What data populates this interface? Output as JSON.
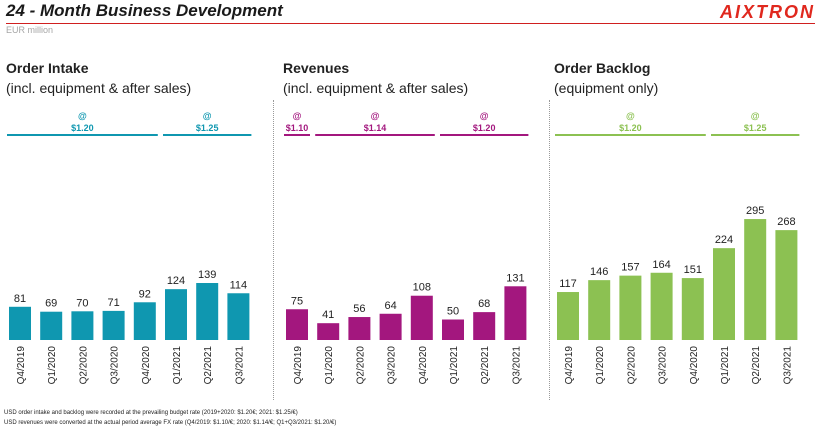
{
  "header": {
    "title": "24 - Month Business Development",
    "logo": "AIXTRON",
    "unit": "EUR million"
  },
  "colors": {
    "accent_red": "#d01f1f"
  },
  "chart_data": [
    {
      "type": "bar",
      "title": "Order Intake",
      "subtitle": "(incl. equipment & after sales)",
      "color": "#0f97b0",
      "categories": [
        "Q4/2019",
        "Q1/2020",
        "Q2/2020",
        "Q3/2020",
        "Q4/2020",
        "Q1/2021",
        "Q2/2021",
        "Q3/2021"
      ],
      "values": [
        81,
        69,
        70,
        71,
        92,
        124,
        139,
        114
      ],
      "rates": [
        {
          "label": "@",
          "value": "$1.20",
          "from": 0,
          "to": 4
        },
        {
          "label": "@",
          "value": "$1.25",
          "from": 5,
          "to": 7
        }
      ]
    },
    {
      "type": "bar",
      "title": "Revenues",
      "subtitle": "(incl. equipment & after sales)",
      "color": "#a3177e",
      "categories": [
        "Q4/2019",
        "Q1/2020",
        "Q2/2020",
        "Q3/2020",
        "Q4/2020",
        "Q1/2021",
        "Q2/2021",
        "Q3/2021"
      ],
      "values": [
        75,
        41,
        56,
        64,
        108,
        50,
        68,
        131
      ],
      "rates": [
        {
          "label": "@",
          "value": "$1.10",
          "from": 0,
          "to": 0
        },
        {
          "label": "@",
          "value": "$1.14",
          "from": 1,
          "to": 4
        },
        {
          "label": "@",
          "value": "$1.20",
          "from": 5,
          "to": 7
        }
      ]
    },
    {
      "type": "bar",
      "title": "Order Backlog",
      "subtitle": "(equipment only)",
      "color": "#8cc152",
      "categories": [
        "Q4/2019",
        "Q1/2020",
        "Q2/2020",
        "Q3/2020",
        "Q4/2020",
        "Q1/2021",
        "Q2/2021",
        "Q3/2021"
      ],
      "values": [
        117,
        146,
        157,
        164,
        151,
        224,
        295,
        268
      ],
      "rates": [
        {
          "label": "@",
          "value": "$1.20",
          "from": 0,
          "to": 4
        },
        {
          "label": "@",
          "value": "$1.25",
          "from": 5,
          "to": 7
        }
      ]
    }
  ],
  "footnotes": [
    "USD order intake and backlog were recorded at the prevailing budget rate (2019+2020: $1.20€; 2021: $1.25/€)",
    "USD revenues were converted at the actual period average FX rate (Q4/2019: $1.10/€; 2020: $1.14/€; Q1+Q3/2021: $1.20/€)"
  ]
}
